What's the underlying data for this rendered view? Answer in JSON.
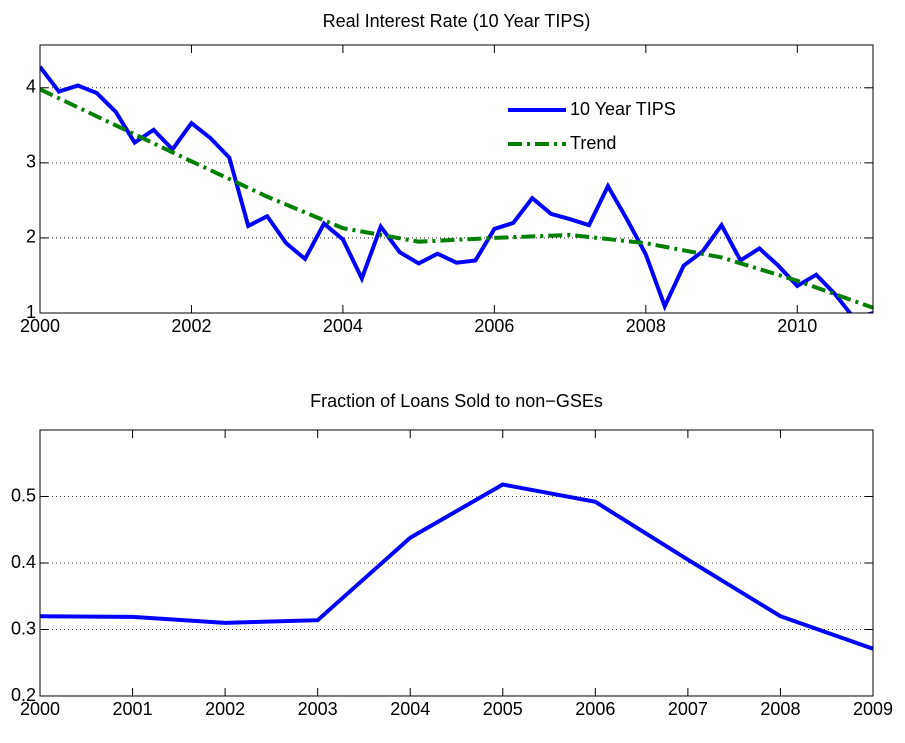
{
  "chart_data": [
    {
      "type": "line",
      "title": "Real Interest Rate (10 Year TIPS)",
      "xlim": [
        2000,
        2011
      ],
      "xticks": [
        2000,
        2002,
        2004,
        2006,
        2008,
        2010
      ],
      "ylim": [
        1,
        4.57
      ],
      "yticks": [
        1,
        2,
        3,
        4
      ],
      "grid": true,
      "legend": "northeast",
      "series": [
        {
          "name": "10 Year TIPS",
          "color": "#0000ff",
          "style": "solid",
          "x": [
            2000,
            2000.25,
            2000.5,
            2000.75,
            2001,
            2001.25,
            2001.5,
            2001.75,
            2002,
            2002.25,
            2002.5,
            2002.75,
            2003,
            2003.25,
            2003.5,
            2003.75,
            2004,
            2004.25,
            2004.5,
            2004.75,
            2005,
            2005.25,
            2005.5,
            2005.75,
            2006,
            2006.25,
            2006.5,
            2006.75,
            2007,
            2007.25,
            2007.5,
            2007.75,
            2008,
            2008.25,
            2008.5,
            2008.75,
            2009,
            2009.25,
            2009.5,
            2009.75,
            2010,
            2010.25,
            2010.5,
            2010.75,
            2011
          ],
          "values": [
            4.28,
            3.95,
            4.03,
            3.93,
            3.68,
            3.27,
            3.44,
            3.18,
            3.53,
            3.33,
            3.07,
            2.16,
            2.29,
            1.93,
            1.72,
            2.19,
            1.98,
            1.46,
            2.15,
            1.81,
            1.66,
            1.79,
            1.67,
            1.7,
            2.12,
            2.2,
            2.53,
            2.32,
            2.25,
            2.17,
            2.69,
            2.25,
            1.78,
            1.09,
            1.63,
            1.82,
            2.17,
            1.7,
            1.86,
            1.63,
            1.36,
            1.51,
            1.25,
            0.93,
            1.0
          ]
        },
        {
          "name": "Trend",
          "color": "#007f00",
          "style": "dashdot",
          "x": [
            2000,
            2001,
            2002,
            2003,
            2004,
            2005,
            2006,
            2007,
            2008,
            2009,
            2010,
            2011
          ],
          "values": [
            3.98,
            3.5,
            3.02,
            2.55,
            2.13,
            1.95,
            2.0,
            2.04,
            1.93,
            1.74,
            1.43,
            1.07
          ]
        }
      ]
    },
    {
      "type": "line",
      "title": "Fraction of Loans Sold to non−GSEs",
      "xlim": [
        2000,
        2009
      ],
      "xticks": [
        2000,
        2001,
        2002,
        2003,
        2004,
        2005,
        2006,
        2007,
        2008,
        2009
      ],
      "ylim": [
        0.2,
        0.6
      ],
      "yticks": [
        0.2,
        0.3,
        0.4,
        0.5
      ],
      "grid": true,
      "series": [
        {
          "color": "#0000ff",
          "style": "solid",
          "x": [
            2000,
            2001,
            2002,
            2003,
            2004,
            2005,
            2006,
            2007,
            2008,
            2009
          ],
          "values": [
            0.32,
            0.319,
            0.31,
            0.314,
            0.438,
            0.518,
            0.492,
            0.405,
            0.32,
            0.271
          ]
        }
      ]
    }
  ]
}
